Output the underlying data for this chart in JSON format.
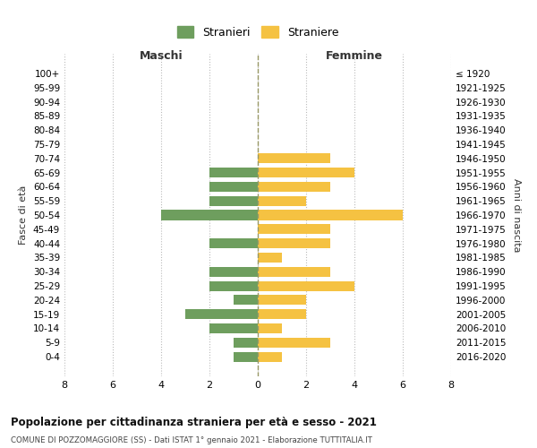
{
  "age_groups": [
    "100+",
    "95-99",
    "90-94",
    "85-89",
    "80-84",
    "75-79",
    "70-74",
    "65-69",
    "60-64",
    "55-59",
    "50-54",
    "45-49",
    "40-44",
    "35-39",
    "30-34",
    "25-29",
    "20-24",
    "15-19",
    "10-14",
    "5-9",
    "0-4"
  ],
  "birth_years": [
    "≤ 1920",
    "1921-1925",
    "1926-1930",
    "1931-1935",
    "1936-1940",
    "1941-1945",
    "1946-1950",
    "1951-1955",
    "1956-1960",
    "1961-1965",
    "1966-1970",
    "1971-1975",
    "1976-1980",
    "1981-1985",
    "1986-1990",
    "1991-1995",
    "1996-2000",
    "2001-2005",
    "2006-2010",
    "2011-2015",
    "2016-2020"
  ],
  "maschi": [
    0,
    0,
    0,
    0,
    0,
    0,
    0,
    2,
    2,
    2,
    4,
    0,
    2,
    0,
    2,
    2,
    1,
    3,
    2,
    1,
    1
  ],
  "femmine": [
    0,
    0,
    0,
    0,
    0,
    0,
    3,
    4,
    3,
    2,
    6,
    3,
    3,
    1,
    3,
    4,
    2,
    2,
    1,
    3,
    1
  ],
  "maschi_color": "#6e9e5e",
  "femmine_color": "#f5c242",
  "background_color": "#ffffff",
  "grid_color": "#cccccc",
  "title": "Popolazione per cittadinanza straniera per età e sesso - 2021",
  "subtitle": "COMUNE DI POZZOMAGGIORE (SS) - Dati ISTAT 1° gennaio 2021 - Elaborazione TUTTITALIA.IT",
  "xlabel_left": "Maschi",
  "xlabel_right": "Femmine",
  "ylabel_left": "Fasce di età",
  "ylabel_right": "Anni di nascita",
  "legend_stranieri": "Stranieri",
  "legend_straniere": "Straniere",
  "xlim": 8
}
